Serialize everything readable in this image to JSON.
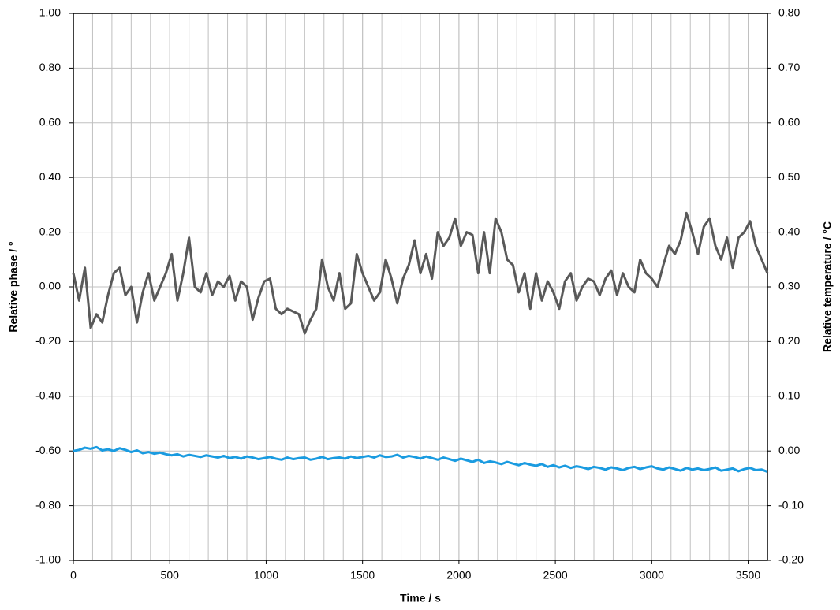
{
  "chart_data": {
    "type": "line",
    "xlabel": "Time / s",
    "ylabel": "Relative phase / °",
    "y2label": "Relative temperature / °C",
    "x": [
      0,
      30,
      60,
      90,
      120,
      150,
      180,
      210,
      240,
      270,
      300,
      330,
      360,
      390,
      420,
      450,
      480,
      510,
      540,
      570,
      600,
      630,
      660,
      690,
      720,
      750,
      780,
      810,
      840,
      870,
      900,
      930,
      960,
      990,
      1020,
      1050,
      1080,
      1110,
      1140,
      1170,
      1200,
      1230,
      1260,
      1290,
      1320,
      1350,
      1380,
      1410,
      1440,
      1470,
      1500,
      1530,
      1560,
      1590,
      1620,
      1650,
      1680,
      1710,
      1740,
      1770,
      1800,
      1830,
      1860,
      1890,
      1920,
      1950,
      1980,
      2010,
      2040,
      2070,
      2100,
      2130,
      2160,
      2190,
      2220,
      2250,
      2280,
      2310,
      2340,
      2370,
      2400,
      2430,
      2460,
      2490,
      2520,
      2550,
      2580,
      2610,
      2640,
      2670,
      2700,
      2730,
      2760,
      2790,
      2820,
      2850,
      2880,
      2910,
      2940,
      2970,
      3000,
      3030,
      3060,
      3090,
      3120,
      3150,
      3180,
      3210,
      3240,
      3270,
      3300,
      3330,
      3360,
      3390,
      3420,
      3450,
      3480,
      3510,
      3540,
      3570,
      3600
    ],
    "series": [
      {
        "color": "#595959",
        "axis": "y",
        "values": [
          0.05,
          -0.05,
          0.07,
          -0.15,
          -0.1,
          -0.13,
          -0.03,
          0.05,
          0.07,
          -0.03,
          0.0,
          -0.13,
          -0.02,
          0.05,
          -0.05,
          0.0,
          0.05,
          0.12,
          -0.05,
          0.05,
          0.18,
          0.0,
          -0.02,
          0.05,
          -0.03,
          0.02,
          0.0,
          0.04,
          -0.05,
          0.02,
          0.0,
          -0.12,
          -0.04,
          0.02,
          0.03,
          -0.08,
          -0.1,
          -0.08,
          -0.09,
          -0.1,
          -0.17,
          -0.12,
          -0.08,
          0.1,
          0.0,
          -0.05,
          0.05,
          -0.08,
          -0.06,
          0.12,
          0.05,
          0.0,
          -0.05,
          -0.02,
          0.1,
          0.03,
          -0.06,
          0.03,
          0.08,
          0.17,
          0.05,
          0.12,
          0.03,
          0.2,
          0.15,
          0.18,
          0.25,
          0.15,
          0.2,
          0.19,
          0.05,
          0.2,
          0.05,
          0.25,
          0.2,
          0.1,
          0.08,
          -0.02,
          0.05,
          -0.08,
          0.05,
          -0.05,
          0.02,
          -0.02,
          -0.08,
          0.02,
          0.05,
          -0.05,
          0.0,
          0.03,
          0.02,
          -0.03,
          0.03,
          0.06,
          -0.03,
          0.05,
          0.0,
          -0.02,
          0.1,
          0.05,
          0.03,
          0.0,
          0.08,
          0.15,
          0.12,
          0.17,
          0.27,
          0.2,
          0.12,
          0.22,
          0.25,
          0.15,
          0.1,
          0.18,
          0.07,
          0.18,
          0.2,
          0.24,
          0.15,
          0.1,
          0.05
        ]
      },
      {
        "color": "#1a9be0",
        "axis": "y2",
        "values": [
          0.0,
          0.002,
          0.006,
          0.004,
          0.007,
          0.001,
          0.003,
          0.0,
          0.005,
          0.002,
          -0.002,
          0.001,
          -0.004,
          -0.002,
          -0.005,
          -0.003,
          -0.006,
          -0.008,
          -0.006,
          -0.01,
          -0.007,
          -0.009,
          -0.011,
          -0.008,
          -0.01,
          -0.012,
          -0.009,
          -0.013,
          -0.011,
          -0.014,
          -0.01,
          -0.012,
          -0.015,
          -0.013,
          -0.011,
          -0.014,
          -0.016,
          -0.012,
          -0.015,
          -0.013,
          -0.012,
          -0.016,
          -0.014,
          -0.011,
          -0.015,
          -0.013,
          -0.012,
          -0.014,
          -0.01,
          -0.013,
          -0.011,
          -0.009,
          -0.012,
          -0.008,
          -0.011,
          -0.01,
          -0.007,
          -0.012,
          -0.009,
          -0.011,
          -0.014,
          -0.01,
          -0.013,
          -0.016,
          -0.012,
          -0.015,
          -0.018,
          -0.014,
          -0.017,
          -0.02,
          -0.016,
          -0.022,
          -0.019,
          -0.021,
          -0.024,
          -0.02,
          -0.023,
          -0.026,
          -0.022,
          -0.025,
          -0.027,
          -0.024,
          -0.029,
          -0.026,
          -0.03,
          -0.027,
          -0.031,
          -0.028,
          -0.03,
          -0.033,
          -0.029,
          -0.031,
          -0.034,
          -0.03,
          -0.032,
          -0.035,
          -0.031,
          -0.029,
          -0.033,
          -0.03,
          -0.028,
          -0.032,
          -0.034,
          -0.03,
          -0.033,
          -0.036,
          -0.031,
          -0.034,
          -0.032,
          -0.035,
          -0.033,
          -0.03,
          -0.036,
          -0.034,
          -0.032,
          -0.037,
          -0.033,
          -0.031,
          -0.035,
          -0.034,
          -0.038
        ]
      }
    ],
    "xlim": [
      0,
      3600
    ],
    "xticks": [
      0,
      500,
      1000,
      1500,
      2000,
      2500,
      3000,
      3500
    ],
    "ylim": [
      -1,
      1
    ],
    "yticks": [
      {
        "value": -1,
        "label": "-1.00"
      },
      {
        "value": -0.8,
        "label": "-0.80"
      },
      {
        "value": -0.6,
        "label": "-0.60"
      },
      {
        "value": -0.4,
        "label": "-0.40"
      },
      {
        "value": -0.2,
        "label": "-0.20"
      },
      {
        "value": 0,
        "label": "0.00"
      },
      {
        "value": 0.2,
        "label": "0.20"
      },
      {
        "value": 0.4,
        "label": "0.40"
      },
      {
        "value": 0.6,
        "label": "0.60"
      },
      {
        "value": 0.8,
        "label": "0.80"
      },
      {
        "value": 1,
        "label": "1.00"
      }
    ],
    "y2lim": [
      -0.2,
      0.8
    ],
    "y2ticks": [
      {
        "value": -0.2,
        "label": "-0.20"
      },
      {
        "value": -0.1,
        "label": "-0.10"
      },
      {
        "value": 0,
        "label": "0.00"
      },
      {
        "value": 0.1,
        "label": "0.10"
      },
      {
        "value": 0.2,
        "label": "0.20"
      },
      {
        "value": 0.3,
        "label": "0.30"
      },
      {
        "value": 0.4,
        "label": "0.40"
      },
      {
        "value": 0.5,
        "label": "0.50"
      },
      {
        "value": 0.6,
        "label": "0.60"
      },
      {
        "value": 0.7,
        "label": "0.70"
      },
      {
        "value": 0.8,
        "label": "0.80"
      }
    ],
    "grid": true
  }
}
